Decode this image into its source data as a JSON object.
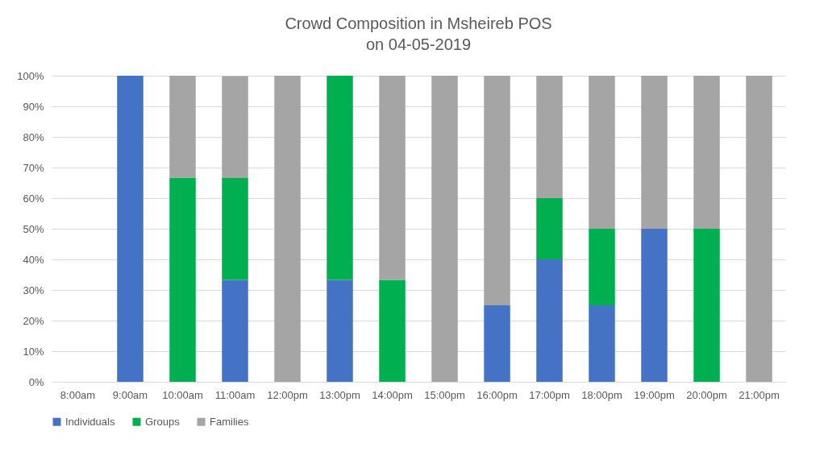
{
  "chart_data": {
    "type": "bar",
    "title": "Crowd Composition in Msheireb POS\non 04-05-2019",
    "stacked": true,
    "categories": [
      "8:00am",
      "9:00am",
      "10:00am",
      "11:00am",
      "12:00pm",
      "13:00pm",
      "14:00pm",
      "15:00pm",
      "16:00pm",
      "17:00pm",
      "18:00pm",
      "19:00pm",
      "20:00pm",
      "21:00pm"
    ],
    "series": [
      {
        "name": "Individuals",
        "color": "#4472c4",
        "values": [
          0,
          100,
          0,
          33.3,
          0,
          33.3,
          0,
          0,
          25,
          40,
          25,
          50,
          0,
          0
        ]
      },
      {
        "name": "Groups",
        "color": "#00b050",
        "values": [
          0,
          0,
          66.7,
          33.3,
          0,
          66.7,
          33.3,
          0,
          0,
          20,
          25,
          0,
          50,
          0
        ]
      },
      {
        "name": "Families",
        "color": "#a5a5a5",
        "values": [
          0,
          0,
          33.3,
          33.3,
          100,
          0,
          66.7,
          100,
          75,
          40,
          50,
          50,
          50,
          100
        ]
      }
    ],
    "ylim": [
      0,
      100
    ],
    "yticks": [
      {
        "value": 0,
        "label": "0%"
      },
      {
        "value": 10,
        "label": "10%"
      },
      {
        "value": 20,
        "label": "20%"
      },
      {
        "value": 30,
        "label": "30%"
      },
      {
        "value": 40,
        "label": "40%"
      },
      {
        "value": 50,
        "label": "50%"
      },
      {
        "value": 60,
        "label": "60%"
      },
      {
        "value": 70,
        "label": "70%"
      },
      {
        "value": 80,
        "label": "80%"
      },
      {
        "value": 90,
        "label": "90%"
      },
      {
        "value": 100,
        "label": "100%"
      }
    ],
    "grid": "y",
    "legend": "bottom"
  }
}
